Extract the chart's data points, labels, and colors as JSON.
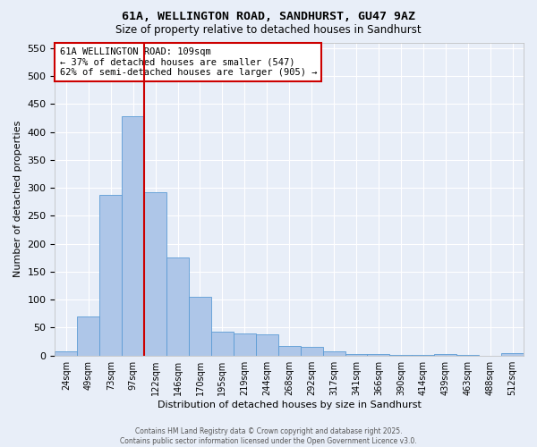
{
  "title1": "61A, WELLINGTON ROAD, SANDHURST, GU47 9AZ",
  "title2": "Size of property relative to detached houses in Sandhurst",
  "xlabel": "Distribution of detached houses by size in Sandhurst",
  "ylabel": "Number of detached properties",
  "bin_labels": [
    "24sqm",
    "49sqm",
    "73sqm",
    "97sqm",
    "122sqm",
    "146sqm",
    "170sqm",
    "195sqm",
    "219sqm",
    "244sqm",
    "268sqm",
    "292sqm",
    "317sqm",
    "341sqm",
    "366sqm",
    "390sqm",
    "414sqm",
    "439sqm",
    "463sqm",
    "488sqm",
    "512sqm"
  ],
  "bar_heights": [
    7,
    70,
    288,
    428,
    292,
    175,
    105,
    43,
    40,
    38,
    17,
    15,
    7,
    3,
    2,
    1,
    1,
    3,
    1,
    0,
    5
  ],
  "bar_color": "#aec6e8",
  "bar_edge_color": "#5b9bd5",
  "property_size_bin": 3,
  "vline_color": "#cc0000",
  "ylim": [
    0,
    560
  ],
  "yticks": [
    0,
    50,
    100,
    150,
    200,
    250,
    300,
    350,
    400,
    450,
    500,
    550
  ],
  "bg_color": "#e8eef8",
  "grid_color": "#ffffff",
  "annotation_line1": "61A WELLINGTON ROAD: 109sqm",
  "annotation_line2": "← 37% of detached houses are smaller (547)",
  "annotation_line3": "62% of semi-detached houses are larger (905) →",
  "footer1": "Contains HM Land Registry data © Crown copyright and database right 2025.",
  "footer2": "Contains public sector information licensed under the Open Government Licence v3.0."
}
